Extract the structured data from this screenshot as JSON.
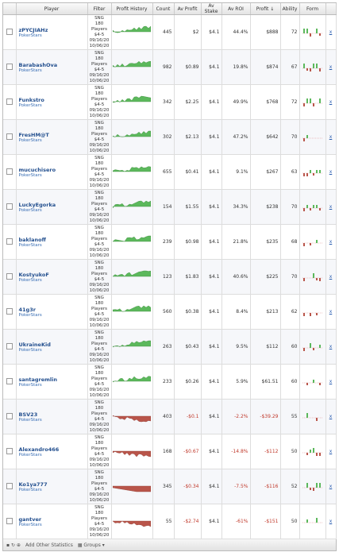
{
  "headers": [
    "Player",
    "Filter",
    "Profit History",
    "Count",
    "Av Profit",
    "Av Stake",
    "Av ROI",
    "Profit ↓",
    "Ability",
    "Form"
  ],
  "filter_lines": [
    "SNG",
    "180",
    "Players",
    "$4-5",
    "09/16/20",
    "10/06/20"
  ],
  "site": "PokerStars",
  "remove": "x",
  "rows": [
    [
      "zPYCJIAHz",
      "445",
      "$2",
      "$4.1",
      "44.4%",
      "$888",
      "72"
    ],
    [
      "BarabashOva",
      "982",
      "$0.89",
      "$4.1",
      "19.8%",
      "$874",
      "67"
    ],
    [
      "Funkstro",
      "342",
      "$2.25",
      "$4.1",
      "49.9%",
      "$768",
      "72"
    ],
    [
      "FresHM@T",
      "302",
      "$2.13",
      "$4.1",
      "47.2%",
      "$642",
      "70"
    ],
    [
      "mucuchisero",
      "655",
      "$0.41",
      "$4.1",
      "9.1%",
      "$267",
      "63"
    ],
    [
      "LuckyEgorka",
      "154",
      "$1.55",
      "$4.1",
      "34.3%",
      "$238",
      "70"
    ],
    [
      "baklanoff",
      "239",
      "$0.98",
      "$4.1",
      "21.8%",
      "$235",
      "68"
    ],
    [
      "KostyukoF",
      "123",
      "$1.83",
      "$4.1",
      "40.6%",
      "$225",
      "70"
    ],
    [
      "41g3r",
      "560",
      "$0.38",
      "$4.1",
      "8.4%",
      "$213",
      "62"
    ],
    [
      "UkraineKid",
      "263",
      "$0.43",
      "$4.1",
      "9.5%",
      "$112",
      "60"
    ],
    [
      "santagremlin",
      "233",
      "$0.26",
      "$4.1",
      "5.9%",
      "$61.51",
      "60"
    ],
    [
      "BSV23",
      "403",
      "-$0.1",
      "$4.1",
      "-2.2%",
      "-$39.29",
      "55"
    ],
    [
      "Alexandro466",
      "168",
      "-$0.67",
      "$4.1",
      "-14.8%",
      "-$112",
      "50"
    ],
    [
      "Ko1ya777",
      "345",
      "-$0.34",
      "$4.1",
      "-7.5%",
      "-$116",
      "52"
    ],
    [
      "gantver",
      "55",
      "-$2.74",
      "$4.1",
      "-61%",
      "-$151",
      "50"
    ]
  ],
  "footer": {
    "add": "Add Other Statistics",
    "groups": "Groups"
  }
}
